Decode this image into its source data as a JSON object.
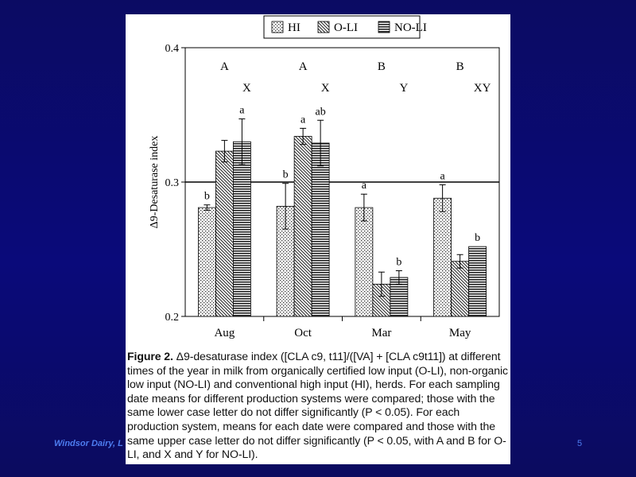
{
  "footer": {
    "left_text": "Windsor Dairy, L",
    "slide_number": "5"
  },
  "figure": {
    "caption_label": "Figure 2.",
    "caption_text": "Δ9-desaturase index ([CLA c9, t11]/([VA] + [CLA c9t11]) at different times of the year in milk from organically certified low input (O-LI), non-organic low input (NO-LI) and conventional high input (HI), herds. For each sampling date means for different production systems were compared; those with the same lower case letter do not differ significantly (P < 0.05). For each production system, means for each date were compared and those with the same upper case letter do not differ significantly (P < 0.05, with A and B for O-LI, and X and Y for NO-LI)."
  },
  "chart_data": {
    "type": "bar",
    "ylabel": "Δ9-Desaturase index",
    "xlabel": "",
    "ylim": [
      0.2,
      0.4
    ],
    "yticks": [
      "0.2",
      "0.3",
      "0.4"
    ],
    "reference_line": 0.3,
    "categories": [
      "Aug",
      "Oct",
      "Mar",
      "May"
    ],
    "legend_position": "top-center",
    "series": [
      {
        "name": "HI",
        "pattern": "dotted",
        "values": [
          0.281,
          0.282,
          0.281,
          0.288
        ],
        "errors": [
          0.002,
          0.017,
          0.01,
          0.01
        ],
        "letters": [
          "b",
          "b",
          "a",
          "a"
        ]
      },
      {
        "name": "O-LI",
        "pattern": "diagonal",
        "values": [
          0.323,
          0.334,
          0.224,
          0.241
        ],
        "errors": [
          0.008,
          0.006,
          0.009,
          0.005
        ],
        "letters": [
          "",
          "a",
          "",
          ""
        ]
      },
      {
        "name": "NO-LI",
        "pattern": "horizontal",
        "values": [
          0.33,
          0.329,
          0.229,
          0.252
        ],
        "errors": [
          0.017,
          0.017,
          0.005,
          0.0
        ],
        "letters": [
          "a",
          "ab",
          "b",
          "b"
        ]
      }
    ],
    "group_letters_OLI": [
      "A",
      "A",
      "B",
      "B"
    ],
    "group_letters_NOLI": [
      "X",
      "X",
      "Y",
      "XY"
    ]
  }
}
